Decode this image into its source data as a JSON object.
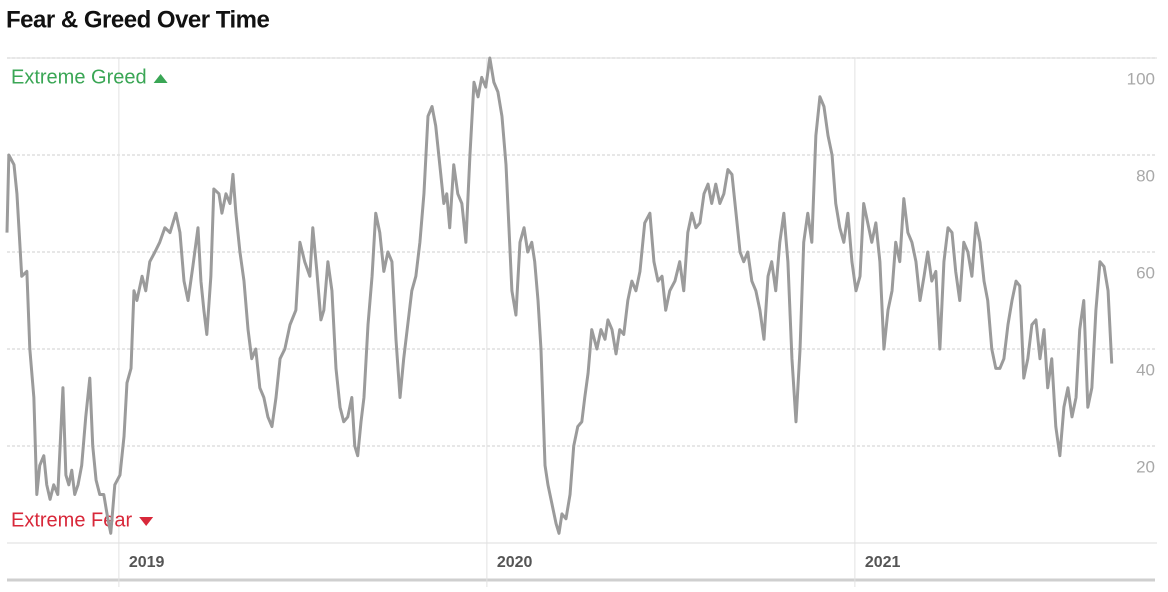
{
  "chart_data": {
    "type": "line",
    "title": "Fear & Greed Over Time",
    "annotations": {
      "top": "Extreme Greed",
      "bottom": "Extreme Fear"
    },
    "color": "#9b9b9b",
    "top_color": "#3aa655",
    "bottom_color": "#d8283a",
    "grid": true,
    "xlim": [
      2018.696,
      2021.821
    ],
    "xticks": [
      2019,
      2020,
      2021
    ],
    "ylim": [
      0,
      100
    ],
    "yticks": [
      20,
      40,
      60,
      80,
      100
    ],
    "x": [
      2018.696,
      2018.701,
      2018.715,
      2018.723,
      2018.736,
      2018.75,
      2018.758,
      2018.769,
      2018.777,
      2018.785,
      2018.796,
      2018.804,
      2018.813,
      2018.823,
      2018.834,
      2018.848,
      2018.856,
      2018.864,
      2018.872,
      2018.88,
      2018.889,
      2018.899,
      2018.91,
      2018.921,
      2018.929,
      2018.938,
      2018.948,
      2018.959,
      2018.97,
      2018.978,
      2018.989,
      2019.003,
      2019.014,
      2019.022,
      2019.033,
      2019.041,
      2019.049,
      2019.063,
      2019.073,
      2019.084,
      2019.098,
      2019.111,
      2019.125,
      2019.139,
      2019.155,
      2019.166,
      2019.177,
      2019.188,
      2019.201,
      2019.215,
      2019.223,
      2019.231,
      2019.239,
      2019.25,
      2019.258,
      2019.272,
      2019.28,
      2019.291,
      2019.302,
      2019.31,
      2019.318,
      2019.329,
      2019.34,
      2019.351,
      2019.361,
      2019.372,
      2019.383,
      2019.394,
      2019.405,
      2019.416,
      2019.427,
      2019.438,
      2019.451,
      2019.465,
      2019.481,
      2019.492,
      2019.505,
      2019.519,
      2019.527,
      2019.538,
      2019.549,
      2019.557,
      2019.568,
      2019.579,
      2019.59,
      2019.601,
      2019.611,
      2019.622,
      2019.633,
      2019.641,
      2019.649,
      2019.658,
      2019.666,
      2019.677,
      2019.688,
      2019.698,
      2019.709,
      2019.72,
      2019.731,
      2019.742,
      2019.753,
      2019.764,
      2019.774,
      2019.785,
      2019.796,
      2019.807,
      2019.818,
      2019.829,
      2019.84,
      2019.851,
      2019.861,
      2019.872,
      2019.883,
      2019.891,
      2019.899,
      2019.91,
      2019.921,
      2019.932,
      2019.943,
      2019.954,
      2019.965,
      2019.976,
      2019.986,
      2019.997,
      2020.008,
      2020.019,
      2020.03,
      2020.041,
      2020.052,
      2020.06,
      2020.068,
      2020.079,
      2020.09,
      2020.101,
      2020.111,
      2020.122,
      2020.13,
      2020.139,
      2020.147,
      2020.158,
      2020.166,
      2020.177,
      2020.188,
      2020.196,
      2020.204,
      2020.215,
      2020.226,
      2020.236,
      2020.247,
      2020.258,
      2020.266,
      2020.275,
      2020.285,
      2020.299,
      2020.31,
      2020.321,
      2020.329,
      2020.34,
      2020.351,
      2020.361,
      2020.372,
      2020.383,
      2020.394,
      2020.405,
      2020.416,
      2020.429,
      2020.443,
      2020.454,
      2020.465,
      2020.476,
      2020.486,
      2020.497,
      2020.511,
      2020.524,
      2020.535,
      2020.546,
      2020.557,
      2020.568,
      2020.579,
      2020.59,
      2020.601,
      2020.611,
      2020.622,
      2020.633,
      2020.644,
      2020.655,
      2020.666,
      2020.677,
      2020.688,
      2020.698,
      2020.709,
      2020.72,
      2020.731,
      2020.742,
      2020.753,
      2020.764,
      2020.774,
      2020.785,
      2020.796,
      2020.807,
      2020.818,
      2020.829,
      2020.84,
      2020.851,
      2020.861,
      2020.872,
      2020.883,
      2020.894,
      2020.905,
      2020.916,
      2020.927,
      2020.938,
      2020.948,
      2020.959,
      2020.97,
      2020.981,
      2020.992,
      2021.003,
      2021.014,
      2021.024,
      2021.035,
      2021.046,
      2021.057,
      2021.068,
      2021.079,
      2021.09,
      2021.101,
      2021.111,
      2021.122,
      2021.133,
      2021.144,
      2021.155,
      2021.166,
      2021.177,
      2021.188,
      2021.198,
      2021.209,
      2021.22,
      2021.231,
      2021.242,
      2021.253,
      2021.264,
      2021.274,
      2021.285,
      2021.296,
      2021.307,
      2021.318,
      2021.329,
      2021.34,
      2021.351,
      2021.361,
      2021.372,
      2021.383,
      2021.394,
      2021.405,
      2021.416,
      2021.427,
      2021.438,
      2021.448,
      2021.459,
      2021.47,
      2021.481,
      2021.492,
      2021.503,
      2021.514,
      2021.524,
      2021.535,
      2021.546,
      2021.557,
      2021.568,
      2021.579,
      2021.59,
      2021.601,
      2021.611,
      2021.622,
      2021.633,
      2021.644,
      2021.655,
      2021.666,
      2021.677,
      2021.688,
      2021.698
    ],
    "values": [
      64,
      80,
      78,
      72,
      55,
      56,
      40,
      30,
      10,
      16,
      18,
      12,
      9,
      12,
      10,
      32,
      14,
      12,
      15,
      10,
      12,
      16,
      26,
      34,
      20,
      13,
      10,
      10,
      5,
      2,
      12,
      14,
      22,
      33,
      36,
      52,
      50,
      55,
      52,
      58,
      60,
      62,
      65,
      64,
      68,
      64,
      54,
      50,
      57,
      65,
      54,
      48,
      43,
      55,
      73,
      72,
      68,
      72,
      70,
      76,
      68,
      60,
      54,
      44,
      38,
      40,
      32,
      30,
      26,
      24,
      30,
      38,
      40,
      45,
      48,
      62,
      58,
      55,
      65,
      56,
      46,
      48,
      58,
      52,
      36,
      28,
      25,
      26,
      30,
      20,
      18,
      25,
      30,
      45,
      55,
      68,
      64,
      56,
      60,
      58,
      42,
      30,
      38,
      45,
      52,
      55,
      62,
      72,
      88,
      90,
      86,
      78,
      70,
      72,
      65,
      78,
      72,
      70,
      62,
      80,
      95,
      92,
      96,
      94,
      100,
      95,
      93,
      88,
      78,
      65,
      52,
      47,
      62,
      65,
      60,
      62,
      58,
      50,
      40,
      16,
      12,
      8,
      4,
      2,
      6,
      5,
      10,
      20,
      24,
      25,
      30,
      35,
      44,
      40,
      44,
      42,
      46,
      44,
      39,
      44,
      43,
      50,
      54,
      52,
      56,
      66,
      68,
      58,
      54,
      55,
      48,
      52,
      54,
      58,
      52,
      64,
      68,
      65,
      66,
      72,
      74,
      70,
      74,
      70,
      72,
      77,
      76,
      68,
      60,
      58,
      60,
      54,
      52,
      48,
      42,
      55,
      58,
      52,
      62,
      68,
      58,
      38,
      25,
      40,
      62,
      68,
      62,
      84,
      92,
      90,
      84,
      80,
      70,
      65,
      62,
      68,
      58,
      52,
      55,
      70,
      66,
      62,
      66,
      58,
      40,
      48,
      52,
      62,
      58,
      71,
      64,
      62,
      58,
      50,
      55,
      60,
      54,
      56,
      40,
      58,
      65,
      64,
      56,
      50,
      62,
      60,
      55,
      66,
      62,
      54,
      50,
      40,
      36,
      36,
      38,
      45,
      50,
      54,
      53,
      34,
      38,
      45,
      46,
      38,
      44,
      32,
      38,
      24,
      18,
      28,
      32,
      26,
      30,
      44,
      50,
      28,
      32,
      48,
      58,
      57,
      52,
      37
    ]
  }
}
